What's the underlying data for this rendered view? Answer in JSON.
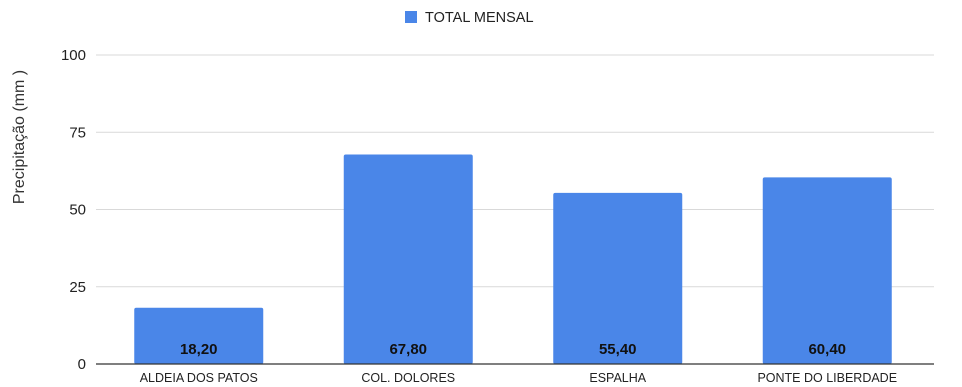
{
  "chart_data": {
    "type": "bar",
    "categories": [
      "ALDEIA DOS PATOS",
      "COL. DOLORES",
      "ESPALHA",
      "PONTE DO LIBERDADE"
    ],
    "series": [
      {
        "name": "TOTAL MENSAL",
        "values": [
          18.2,
          67.8,
          55.4,
          60.4
        ],
        "data_labels": [
          "18,20",
          "67,80",
          "55,40",
          "60,40"
        ],
        "color": "#4a86e8"
      }
    ],
    "title": "",
    "xlabel": "",
    "ylabel": "Precipitação (mm )",
    "ylim": [
      0,
      100
    ],
    "yticks": [
      0,
      25,
      50,
      75,
      100
    ],
    "ytick_labels": [
      "0",
      "25",
      "50",
      "75",
      "100"
    ],
    "grid": true,
    "legend_position": "top-center"
  }
}
